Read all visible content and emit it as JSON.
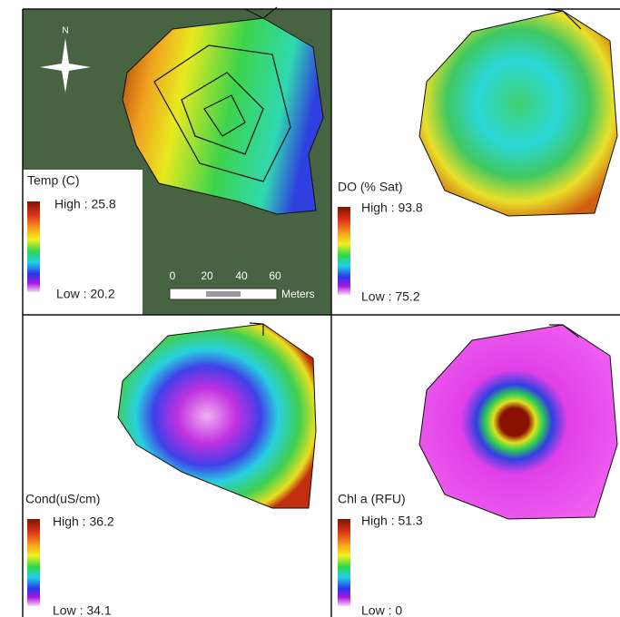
{
  "compass": "N",
  "scale_bar": {
    "ticks": [
      "0",
      "20",
      "40",
      "60"
    ],
    "unit": "Meters"
  },
  "panels": [
    {
      "legend_title": "Temp (C)",
      "high": "High : 25.8",
      "low": "Low : 20.2"
    },
    {
      "legend_title": "DO (% Sat)",
      "high": "High : 93.8",
      "low": "Low : 75.2"
    },
    {
      "legend_title": "Cond(uS/cm)",
      "high": "High : 36.2",
      "low": "Low : 34.1"
    },
    {
      "legend_title": "Chl a (RFU)",
      "high": "High : 51.3",
      "low": "Low : 0"
    }
  ]
}
